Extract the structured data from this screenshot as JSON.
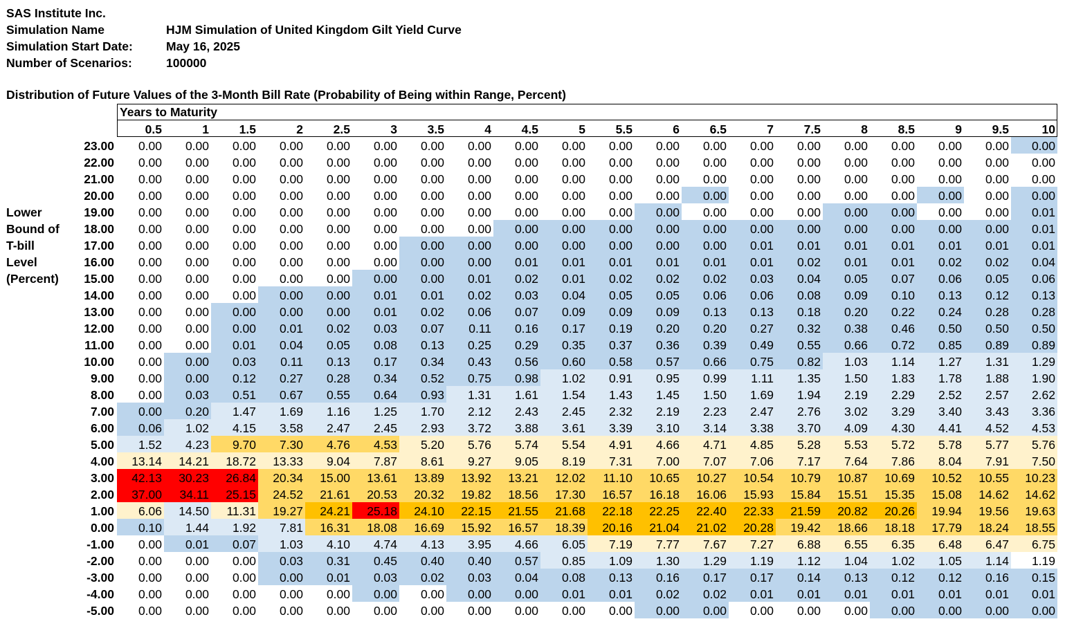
{
  "header": {
    "company": "SAS Institute Inc.",
    "simulation_name_label": "Simulation Name",
    "simulation_name": "HJM Simulation of United Kingdom Gilt Yield Curve",
    "start_date_label": "Simulation Start Date:",
    "start_date": "May 16, 2025",
    "scenarios_label": "Number of Scenarios:",
    "scenarios": "100000"
  },
  "table_title": "Distribution of Future Values of the 3-Month Bill Rate (Probability of Being within Range, Percent)",
  "column_group_label": "Years to Maturity",
  "row_axis_label": [
    "Lower",
    "Bound of",
    "T-bill",
    "Level",
    "(Percent)"
  ],
  "columns": [
    "0.5",
    "1",
    "1.5",
    "2",
    "2.5",
    "3",
    "3.5",
    "4",
    "4.5",
    "5",
    "5.5",
    "6",
    "6.5",
    "7",
    "7.5",
    "8",
    "8.5",
    "9",
    "9.5",
    "10"
  ],
  "row_labels": [
    "23.00",
    "22.00",
    "21.00",
    "20.00",
    "19.00",
    "18.00",
    "17.00",
    "16.00",
    "15.00",
    "14.00",
    "13.00",
    "12.00",
    "11.00",
    "10.00",
    "9.00",
    "8.00",
    "7.00",
    "6.00",
    "5.00",
    "4.00",
    "3.00",
    "2.00",
    "1.00",
    "0.00",
    "-1.00",
    "-2.00",
    "-3.00",
    "-4.00",
    "-5.00"
  ],
  "colors": {
    "white": "#ffffff",
    "light_blue": "#dce9f5",
    "mid_blue": "#bcd5ec",
    "light_yellow": "#fff2cc",
    "yellow": "#ffd966",
    "gold": "#ffc000",
    "red": "#ff0000"
  },
  "cells": [
    [
      "0.00",
      "0.00",
      "0.00",
      "0.00",
      "0.00",
      "0.00",
      "0.00",
      "0.00",
      "0.00",
      "0.00",
      "0.00",
      "0.00",
      "0.00",
      "0.00",
      "0.00",
      "0.00",
      "0.00",
      "0.00",
      "0.00",
      "0.00"
    ],
    [
      "0.00",
      "0.00",
      "0.00",
      "0.00",
      "0.00",
      "0.00",
      "0.00",
      "0.00",
      "0.00",
      "0.00",
      "0.00",
      "0.00",
      "0.00",
      "0.00",
      "0.00",
      "0.00",
      "0.00",
      "0.00",
      "0.00",
      "0.00"
    ],
    [
      "0.00",
      "0.00",
      "0.00",
      "0.00",
      "0.00",
      "0.00",
      "0.00",
      "0.00",
      "0.00",
      "0.00",
      "0.00",
      "0.00",
      "0.00",
      "0.00",
      "0.00",
      "0.00",
      "0.00",
      "0.00",
      "0.00",
      "0.00"
    ],
    [
      "0.00",
      "0.00",
      "0.00",
      "0.00",
      "0.00",
      "0.00",
      "0.00",
      "0.00",
      "0.00",
      "0.00",
      "0.00",
      "0.00",
      "0.00",
      "0.00",
      "0.00",
      "0.00",
      "0.00",
      "0.00",
      "0.00",
      "0.00"
    ],
    [
      "0.00",
      "0.00",
      "0.00",
      "0.00",
      "0.00",
      "0.00",
      "0.00",
      "0.00",
      "0.00",
      "0.00",
      "0.00",
      "0.00",
      "0.00",
      "0.00",
      "0.00",
      "0.00",
      "0.00",
      "0.00",
      "0.00",
      "0.01"
    ],
    [
      "0.00",
      "0.00",
      "0.00",
      "0.00",
      "0.00",
      "0.00",
      "0.00",
      "0.00",
      "0.00",
      "0.00",
      "0.00",
      "0.00",
      "0.00",
      "0.00",
      "0.00",
      "0.00",
      "0.00",
      "0.00",
      "0.00",
      "0.01"
    ],
    [
      "0.00",
      "0.00",
      "0.00",
      "0.00",
      "0.00",
      "0.00",
      "0.00",
      "0.00",
      "0.00",
      "0.00",
      "0.00",
      "0.00",
      "0.00",
      "0.01",
      "0.01",
      "0.01",
      "0.01",
      "0.01",
      "0.01",
      "0.01"
    ],
    [
      "0.00",
      "0.00",
      "0.00",
      "0.00",
      "0.00",
      "0.00",
      "0.00",
      "0.00",
      "0.01",
      "0.01",
      "0.01",
      "0.01",
      "0.01",
      "0.01",
      "0.02",
      "0.01",
      "0.01",
      "0.02",
      "0.02",
      "0.04"
    ],
    [
      "0.00",
      "0.00",
      "0.00",
      "0.00",
      "0.00",
      "0.00",
      "0.00",
      "0.01",
      "0.02",
      "0.01",
      "0.02",
      "0.02",
      "0.02",
      "0.03",
      "0.04",
      "0.05",
      "0.07",
      "0.06",
      "0.05",
      "0.06"
    ],
    [
      "0.00",
      "0.00",
      "0.00",
      "0.00",
      "0.00",
      "0.01",
      "0.01",
      "0.02",
      "0.03",
      "0.04",
      "0.05",
      "0.05",
      "0.06",
      "0.06",
      "0.08",
      "0.09",
      "0.10",
      "0.13",
      "0.12",
      "0.13"
    ],
    [
      "0.00",
      "0.00",
      "0.00",
      "0.00",
      "0.00",
      "0.01",
      "0.02",
      "0.06",
      "0.07",
      "0.09",
      "0.09",
      "0.09",
      "0.13",
      "0.13",
      "0.18",
      "0.20",
      "0.22",
      "0.24",
      "0.28",
      "0.28"
    ],
    [
      "0.00",
      "0.00",
      "0.00",
      "0.01",
      "0.02",
      "0.03",
      "0.07",
      "0.11",
      "0.16",
      "0.17",
      "0.19",
      "0.20",
      "0.20",
      "0.27",
      "0.32",
      "0.38",
      "0.46",
      "0.50",
      "0.50",
      "0.50"
    ],
    [
      "0.00",
      "0.00",
      "0.01",
      "0.04",
      "0.05",
      "0.08",
      "0.13",
      "0.25",
      "0.29",
      "0.35",
      "0.37",
      "0.36",
      "0.39",
      "0.49",
      "0.55",
      "0.66",
      "0.72",
      "0.85",
      "0.89",
      "0.89"
    ],
    [
      "0.00",
      "0.00",
      "0.03",
      "0.11",
      "0.13",
      "0.17",
      "0.34",
      "0.43",
      "0.56",
      "0.60",
      "0.58",
      "0.57",
      "0.66",
      "0.75",
      "0.82",
      "1.03",
      "1.14",
      "1.27",
      "1.31",
      "1.29"
    ],
    [
      "0.00",
      "0.00",
      "0.12",
      "0.27",
      "0.28",
      "0.34",
      "0.52",
      "0.75",
      "0.98",
      "1.02",
      "0.91",
      "0.95",
      "0.99",
      "1.11",
      "1.35",
      "1.50",
      "1.83",
      "1.78",
      "1.88",
      "1.90"
    ],
    [
      "0.00",
      "0.03",
      "0.51",
      "0.67",
      "0.55",
      "0.64",
      "0.93",
      "1.31",
      "1.61",
      "1.54",
      "1.43",
      "1.45",
      "1.50",
      "1.69",
      "1.94",
      "2.19",
      "2.29",
      "2.52",
      "2.57",
      "2.62"
    ],
    [
      "0.00",
      "0.20",
      "1.47",
      "1.69",
      "1.16",
      "1.25",
      "1.70",
      "2.12",
      "2.43",
      "2.45",
      "2.32",
      "2.19",
      "2.23",
      "2.47",
      "2.76",
      "3.02",
      "3.29",
      "3.40",
      "3.43",
      "3.36"
    ],
    [
      "0.06",
      "1.02",
      "4.15",
      "3.58",
      "2.47",
      "2.45",
      "2.93",
      "3.72",
      "3.88",
      "3.61",
      "3.39",
      "3.10",
      "3.14",
      "3.38",
      "3.70",
      "4.09",
      "4.30",
      "4.41",
      "4.52",
      "4.53"
    ],
    [
      "1.52",
      "4.23",
      "9.70",
      "7.30",
      "4.76",
      "4.53",
      "5.20",
      "5.76",
      "5.74",
      "5.54",
      "4.91",
      "4.66",
      "4.71",
      "4.85",
      "5.28",
      "5.53",
      "5.72",
      "5.78",
      "5.77",
      "5.76"
    ],
    [
      "13.14",
      "14.21",
      "18.72",
      "13.33",
      "9.04",
      "7.87",
      "8.61",
      "9.27",
      "9.05",
      "8.19",
      "7.31",
      "7.00",
      "7.07",
      "7.06",
      "7.17",
      "7.64",
      "7.86",
      "8.04",
      "7.91",
      "7.50"
    ],
    [
      "42.13",
      "30.23",
      "26.84",
      "20.34",
      "15.00",
      "13.61",
      "13.89",
      "13.92",
      "13.21",
      "12.02",
      "11.10",
      "10.65",
      "10.27",
      "10.54",
      "10.79",
      "10.87",
      "10.69",
      "10.52",
      "10.55",
      "10.23"
    ],
    [
      "37.00",
      "34.11",
      "25.15",
      "24.52",
      "21.61",
      "20.53",
      "20.32",
      "19.82",
      "18.56",
      "17.30",
      "16.57",
      "16.18",
      "16.06",
      "15.93",
      "15.84",
      "15.51",
      "15.35",
      "15.08",
      "14.62",
      "14.62"
    ],
    [
      "6.06",
      "14.50",
      "11.31",
      "19.27",
      "24.21",
      "25.18",
      "24.10",
      "22.15",
      "21.55",
      "21.68",
      "22.18",
      "22.25",
      "22.40",
      "22.33",
      "21.59",
      "20.82",
      "20.26",
      "19.94",
      "19.56",
      "19.63"
    ],
    [
      "0.10",
      "1.44",
      "1.92",
      "7.81",
      "16.31",
      "18.08",
      "16.69",
      "15.92",
      "16.57",
      "18.39",
      "20.16",
      "21.04",
      "21.02",
      "20.28",
      "19.42",
      "18.66",
      "18.18",
      "17.79",
      "18.24",
      "18.55"
    ],
    [
      "0.00",
      "0.01",
      "0.07",
      "1.03",
      "4.10",
      "4.74",
      "4.13",
      "3.95",
      "4.66",
      "6.05",
      "7.19",
      "7.77",
      "7.67",
      "7.27",
      "6.88",
      "6.55",
      "6.35",
      "6.48",
      "6.47",
      "6.75"
    ],
    [
      "0.00",
      "0.00",
      "0.00",
      "0.03",
      "0.31",
      "0.45",
      "0.40",
      "0.40",
      "0.57",
      "0.85",
      "1.09",
      "1.30",
      "1.29",
      "1.19",
      "1.12",
      "1.04",
      "1.02",
      "1.05",
      "1.14",
      "1.19"
    ],
    [
      "0.00",
      "0.00",
      "0.00",
      "0.00",
      "0.01",
      "0.03",
      "0.02",
      "0.03",
      "0.04",
      "0.08",
      "0.13",
      "0.16",
      "0.17",
      "0.17",
      "0.14",
      "0.13",
      "0.12",
      "0.12",
      "0.16",
      "0.15"
    ],
    [
      "0.00",
      "0.00",
      "0.00",
      "0.00",
      "0.00",
      "0.00",
      "0.00",
      "0.00",
      "0.00",
      "0.01",
      "0.01",
      "0.02",
      "0.02",
      "0.01",
      "0.01",
      "0.01",
      "0.01",
      "0.01",
      "0.01",
      "0.01"
    ],
    [
      "0.00",
      "0.00",
      "0.00",
      "0.00",
      "0.00",
      "0.00",
      "0.00",
      "0.00",
      "0.00",
      "0.00",
      "0.00",
      "0.00",
      "0.00",
      "0.00",
      "0.00",
      "0.00",
      "0.00",
      "0.00",
      "0.00",
      "0.00"
    ]
  ],
  "cell_fill": [
    "wwwwwwwwwwwwwwwwwwwB",
    "wwwwwwwwwwwwwwwwwwww",
    "wwwwwwwwwwwwwwwwwwww",
    "wwwwwwwwwwwwBwwwwBwB",
    "wwwwwwwwwwwBwwwBBwwB",
    "wwwwwwwwBBBBBBBBBBBB",
    "wwwwwwBBBBBBBBBBBBBB",
    "wwwwwwBBBBBBBBBBBBBB",
    "wwwwwBBBBBBBBBBBBBBB",
    "wwwBBBBBBBBBBBBBBBBB",
    "wwBBBBBBBBBBBBBBBBBB",
    "wwBBBBBBBBBBBBBBBBBB",
    "wwBBBBBBBBBBBBBBBBBB",
    "wBBBBBBBBBBBBBBlllll",
    "wBBBBBBBBlllllllllll",
    "wBBBBBBlllllllllllll",
    "BBllllllllllllllllll",
    "Blllllllllllllllllll",
    "llyyyyYYYYYYYYYYYYYY",
    "YYYYYYYYYYYYYYYYYYYY",
    "RRRyyyyyyyyyyyyyyyyy",
    "RRRyyyyyyyyyyyyyyyyy",
    "YlYyGRGGGGGGGGGGGyyy",
    "BlllyyyyyyGGGGyyyyyy",
    "wBBlllllllYYYYYYYYYY",
    "wwwBBBBBBllllllllll",
    "wwwBBBBBBBBBBBBBBBBB",
    "wwwwwBwBBBBBBBBBBBBB",
    "wwwwwwwwwwwBBwwwBBBB"
  ]
}
